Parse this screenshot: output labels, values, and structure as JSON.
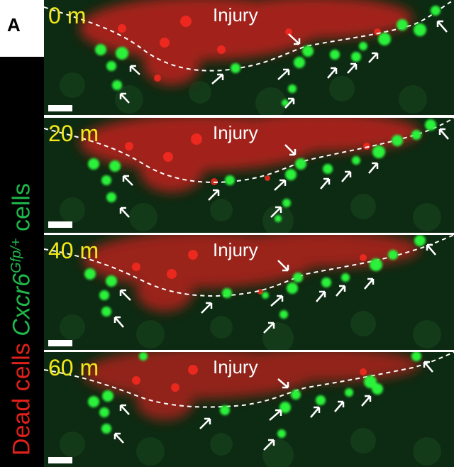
{
  "figure": {
    "panel_letter": "A",
    "side_label": {
      "dead": "Dead cells",
      "cxcr": "Cxcr6",
      "superscript": "Gfp/+",
      "cells": "cells"
    },
    "frames": [
      {
        "time": "0 m",
        "injury": "Injury"
      },
      {
        "time": "20 m",
        "injury": "Injury"
      },
      {
        "time": "40 m",
        "injury": "Injury"
      },
      {
        "time": "60 m",
        "injury": "Injury"
      }
    ],
    "colors": {
      "dead_cells": "#e0201a",
      "gfp_cells": "#2bf23a",
      "time_label": "#f2e81b",
      "background": "#0d2a12"
    }
  }
}
